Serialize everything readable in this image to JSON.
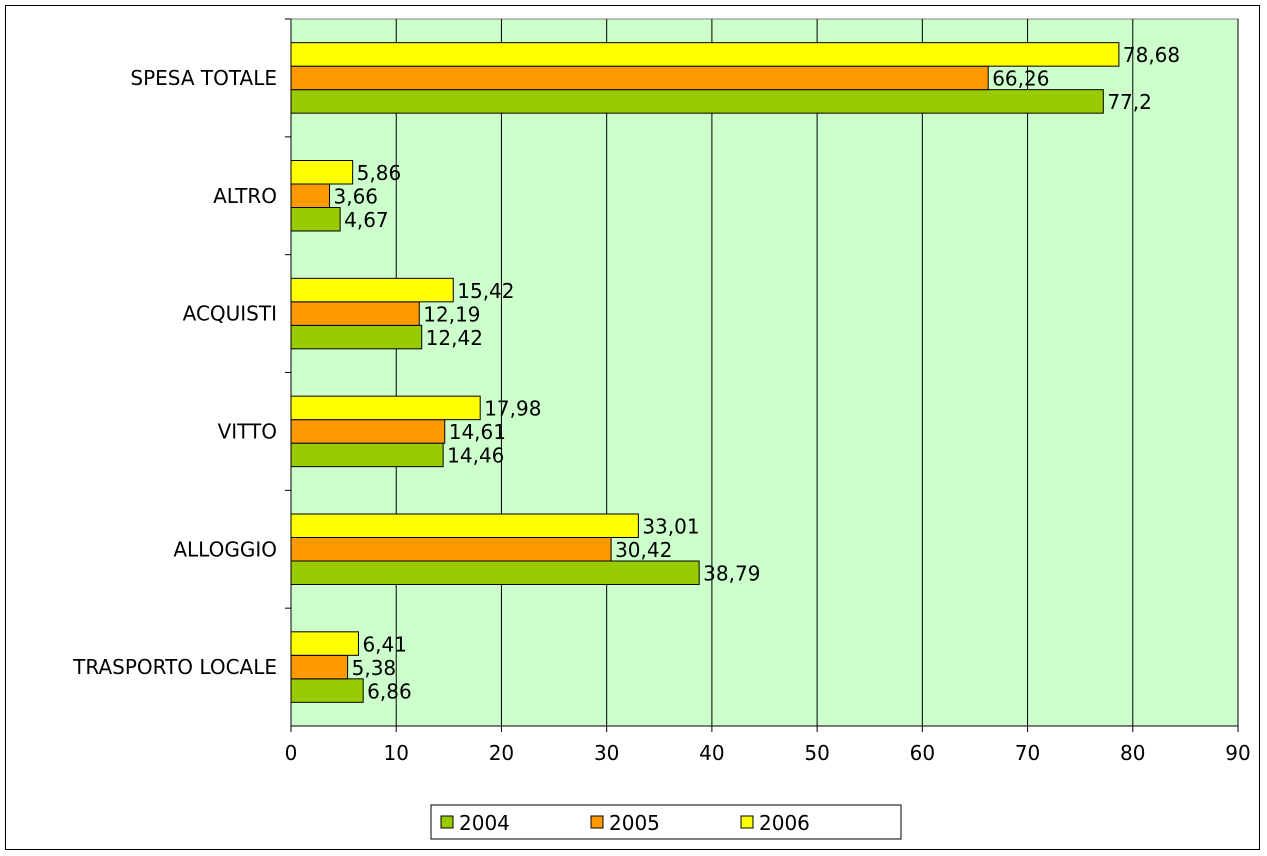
{
  "chart_data": {
    "type": "bar",
    "orientation": "horizontal",
    "categories": [
      "TRASPORTO LOCALE",
      "ALLOGGIO",
      "VITTO",
      "ACQUISTI",
      "ALTRO",
      "SPESA TOTALE"
    ],
    "series": [
      {
        "name": "2004",
        "color": "#99cc00",
        "labels": [
          "6,86",
          "38,79",
          "14,46",
          "12,42",
          "4,67",
          "77,2"
        ],
        "values": [
          6.86,
          38.79,
          14.46,
          12.42,
          4.67,
          77.2
        ]
      },
      {
        "name": "2005",
        "color": "#ff9900",
        "labels": [
          "5,38",
          "30,42",
          "14,61",
          "12,19",
          "3,66",
          "66,26"
        ],
        "values": [
          5.38,
          30.42,
          14.61,
          12.19,
          3.66,
          66.26
        ]
      },
      {
        "name": "2006",
        "color": "#ffff00",
        "labels": [
          "6,41",
          "33,01",
          "17,98",
          "15,42",
          "5,86",
          "78,68"
        ],
        "values": [
          6.41,
          33.01,
          17.98,
          15.42,
          5.86,
          78.68
        ]
      }
    ],
    "xlim": [
      0,
      90
    ],
    "xticks": [
      "0",
      "10",
      "20",
      "30",
      "40",
      "50",
      "60",
      "70",
      "80",
      "90"
    ],
    "grid": true,
    "plot_background": "#ccffcc",
    "legend_position": "bottom"
  }
}
